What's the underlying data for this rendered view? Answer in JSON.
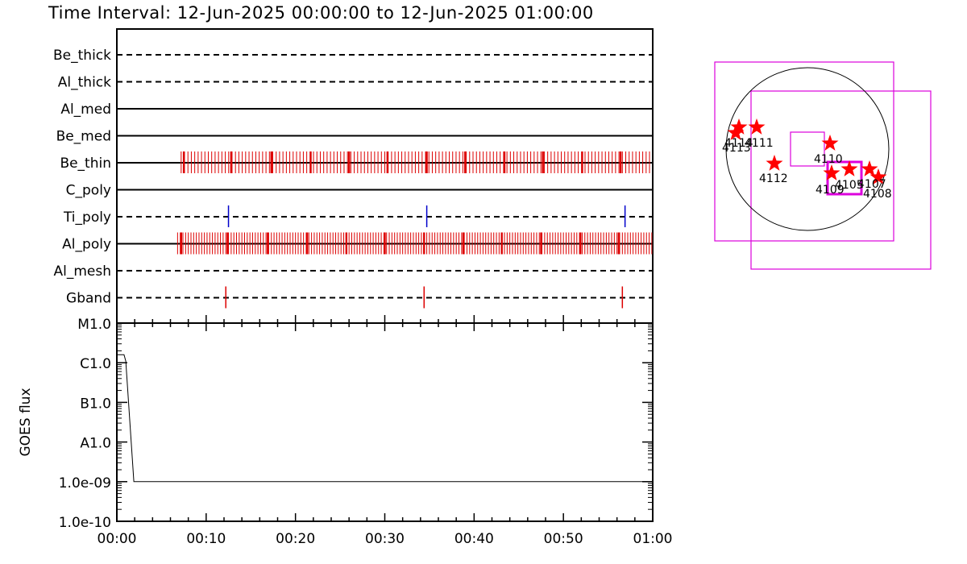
{
  "title": "Time Interval: 12-Jun-2025 00:00:00 to 12-Jun-2025 01:00:00",
  "colors": {
    "image_marker": "#dd0000",
    "alt_marker": "#0000cc",
    "fov": "#dd00dd",
    "star": "#ff0000"
  },
  "chart_data": [
    {
      "type": "event-timeline",
      "x_range_minutes": [
        0,
        60
      ],
      "x_tick_labels": [
        "00:00",
        "00:10",
        "00:20",
        "00:30",
        "00:40",
        "00:50",
        "01:00"
      ],
      "rows": [
        {
          "label": "Be_thick",
          "line": "dashed",
          "marker_color": "#dd0000",
          "markers": []
        },
        {
          "label": "Al_thick",
          "line": "dashed",
          "marker_color": "#dd0000",
          "markers": []
        },
        {
          "label": "Al_med",
          "line": "solid",
          "marker_color": "#dd0000",
          "markers": []
        },
        {
          "label": "Be_med",
          "line": "solid",
          "marker_color": "#dd0000",
          "markers": []
        },
        {
          "label": "Be_thin",
          "line": "solid",
          "marker_color": "#dd0000",
          "marker_range": [
            7.2,
            60
          ],
          "marker_spacing": 0.38,
          "bold_markers": [
            7.5,
            12.8,
            17.3,
            21.7,
            26.0,
            30.3,
            34.7,
            39.0,
            43.4,
            47.7,
            52.1,
            56.4
          ]
        },
        {
          "label": "C_poly",
          "line": "solid",
          "marker_color": "#dd0000",
          "markers": []
        },
        {
          "label": "Ti_poly",
          "line": "dashed",
          "marker_color": "#0000cc",
          "markers": [
            12.5,
            34.7,
            56.9
          ]
        },
        {
          "label": "Al_poly",
          "line": "solid",
          "marker_color": "#dd0000",
          "marker_range": [
            6.8,
            60
          ],
          "marker_spacing": 0.3,
          "bold_markers": [
            7.2,
            12.4,
            16.9,
            21.3,
            25.7,
            30.0,
            34.4,
            38.8,
            43.1,
            47.5,
            51.9,
            56.2
          ]
        },
        {
          "label": "Al_mesh",
          "line": "dashed",
          "marker_color": "#dd0000",
          "markers": []
        },
        {
          "label": "Gband",
          "line": "dashed",
          "marker_color": "#dd0000",
          "markers": [
            12.2,
            34.4,
            56.6
          ]
        }
      ]
    },
    {
      "type": "line",
      "ylabel": "GOES flux",
      "y_log": true,
      "y_tick_labels": [
        "M1.0",
        "C1.0",
        "B1.0",
        "A1.0",
        "1.0e-09",
        "1.0e-10"
      ],
      "y_tick_values": [
        1e-05,
        1e-06,
        1e-07,
        1e-08,
        1e-09,
        1e-10
      ],
      "ylim": [
        1e-10,
        1e-05
      ],
      "x_range_minutes": [
        0,
        60
      ],
      "x_tick_labels": [
        "00:00",
        "00:10",
        "00:20",
        "00:30",
        "00:40",
        "00:50",
        "01:00"
      ],
      "series": [
        {
          "x": [
            0,
            0.8,
            1.0,
            1.9,
            2.0,
            60
          ],
          "y": [
            1.6e-06,
            1.6e-06,
            1.1e-06,
            1e-09,
            1e-09,
            1e-09
          ]
        }
      ]
    }
  ],
  "solar_disk": {
    "active_regions": [
      "4105",
      "4107",
      "4108",
      "4109",
      "4110",
      "4111",
      "4112",
      "4113",
      "4114"
    ]
  }
}
